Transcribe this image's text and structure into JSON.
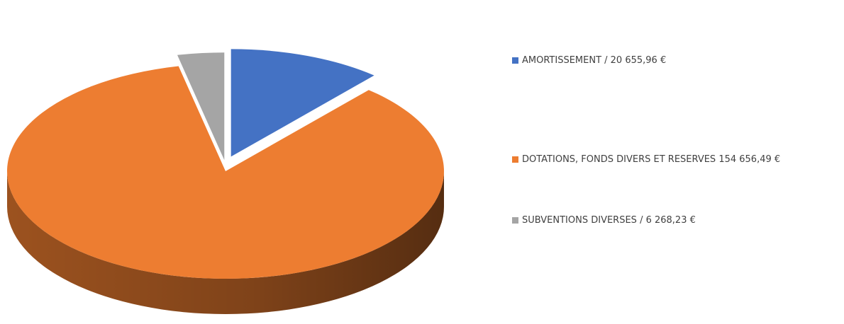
{
  "chart_data": {
    "type": "pie",
    "title": "",
    "style": "3d exploded",
    "legend_position": "right",
    "series": [
      {
        "label": "AMORTISSEMENT  / 20 655,96  €",
        "value": 20655.96,
        "color": "#4472C4",
        "side_color": "#2D4B82"
      },
      {
        "label": "DOTATIONS,  FONDS DIVERS ET RESERVES 154  656,49  €",
        "value": 154656.49,
        "color": "#ED7D31",
        "side_color": "#9C521F"
      },
      {
        "label": "SUBVENTIONS  DIVERSES / 6 268,23  €",
        "value": 6268.23,
        "color": "#A5A5A5",
        "side_color": "#3C3C3C"
      }
    ]
  }
}
